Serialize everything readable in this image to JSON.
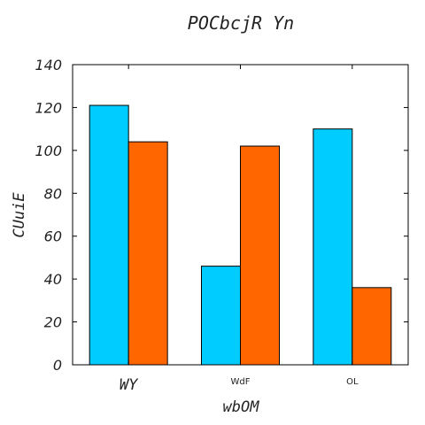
{
  "chart_data": {
    "type": "bar",
    "title": "POCbcjR Yn",
    "xlabel": "wbOM",
    "ylabel": "CUuiE",
    "categories": [
      "WY",
      "WdF",
      "OL"
    ],
    "series": [
      {
        "values": [
          121,
          46,
          110
        ],
        "color": "#00ccff"
      },
      {
        "values": [
          104,
          102,
          36
        ],
        "color": "#ff6600"
      }
    ],
    "ylim": [
      0,
      140
    ],
    "yticks": [
      0,
      20,
      40,
      60,
      80,
      100,
      120,
      140
    ],
    "grid": false,
    "legend": "none"
  }
}
